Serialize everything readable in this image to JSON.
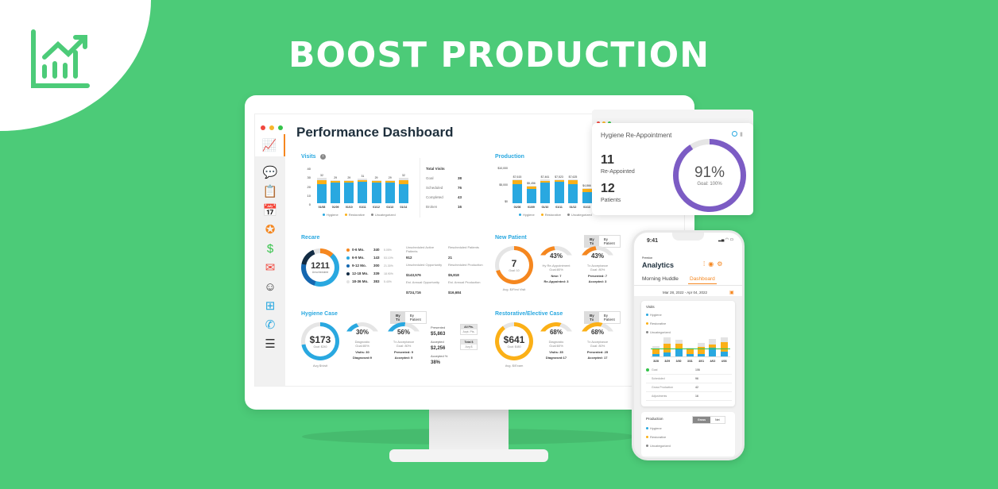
{
  "headline": "BOOST PRODUCTION",
  "colors": {
    "background": "#4ccb78",
    "hygiene": "#29a8e0",
    "restorative": "#fbb017",
    "uncategorized": "#e3e3e3",
    "accent_orange": "#f5871f",
    "purple": "#7c5cc4"
  },
  "logo_icon": "growth-chart-icon",
  "dashboard": {
    "title": "Performance Dashboard",
    "sidebar_icons": [
      "analytics-icon",
      "chat-icon",
      "patient-form-icon",
      "calendar-icon",
      "star-badge-icon",
      "money-icon",
      "mail-icon",
      "user-icon",
      "video-icon",
      "phone-icon",
      "clipboard-icon"
    ],
    "visits": {
      "title": "Visits",
      "yticks": [
        "40",
        "30",
        "20",
        "10",
        "0"
      ],
      "chart_data": {
        "type": "bar",
        "categories": [
          "01/08",
          "01/09",
          "01/10",
          "01/11",
          "01/12",
          "01/13",
          "01/14"
        ],
        "series": [
          {
            "name": "Hygiene",
            "values": [
              24,
              26,
              26,
              27,
              26,
              26,
              24
            ]
          },
          {
            "name": "Restorative",
            "values": [
              5,
              2,
              2,
              2,
              2,
              2,
              5
            ]
          },
          {
            "name": "Uncategorized",
            "values": [
              3,
              1,
              1,
              2,
              1,
              1,
              3
            ]
          }
        ],
        "totals": [
          32,
          29,
          29,
          31,
          29,
          29,
          32
        ],
        "ylim": [
          0,
          40
        ]
      },
      "legend": [
        "Hygiene",
        "Restorative",
        "Uncategorized"
      ],
      "total_visits": {
        "title": "Total Visits",
        "rows": [
          {
            "label": "Goal",
            "value": "38"
          },
          {
            "label": "Scheduled",
            "value": "76"
          },
          {
            "label": "Completed",
            "value": "43"
          },
          {
            "label": "Broken",
            "value": "16"
          }
        ]
      }
    },
    "production": {
      "title": "Production",
      "yticks": [
        "$10,000",
        "$5,000",
        "$0"
      ],
      "chart_data": {
        "type": "bar",
        "categories": [
          "01/08",
          "01/09",
          "01/10",
          "01/11",
          "01/12",
          "01/13"
        ],
        "series": [
          {
            "name": "Hygiene",
            "values": [
              6000,
              4600,
              6500,
              6800,
              6000,
              3600
            ]
          },
          {
            "name": "Restorative",
            "values": [
              1200,
              700,
              500,
              400,
              1200,
              800
            ]
          },
          {
            "name": "Uncategorized",
            "values": [
              415,
              156,
              461,
              323,
              425,
              466
            ]
          }
        ],
        "labels": [
          "$7,615",
          "$5,456",
          "$7,461",
          "$7,523",
          "$7,625",
          "$4,866"
        ],
        "ylim": [
          0,
          10000
        ]
      },
      "legend": [
        "Hygiene",
        "Restorative",
        "Uncategorized"
      ]
    },
    "recare": {
      "title": "Recare",
      "center_value": "1211",
      "center_label": "Unscheduled",
      "rows": [
        {
          "label": "0-6 Mo.",
          "value": "340",
          "pct": "5.05%",
          "color": "#f5871f"
        },
        {
          "label": "6-9 Mo.",
          "value": "143",
          "pct": "53.10%",
          "color": "#29a8e0"
        },
        {
          "label": "9-12 Mo.",
          "value": "300",
          "pct": "21.30%",
          "color": "#1567b0"
        },
        {
          "label": "12-18 Mo.",
          "value": "339",
          "pct": "18.90%",
          "color": "#132c44"
        },
        {
          "label": "18-36 Mo.",
          "value": "383",
          "pct": "5.40%",
          "color": "#e3e3e3"
        }
      ],
      "stats": [
        {
          "label": "Unscheduled Active Patients",
          "value": "912"
        },
        {
          "label": "Rescheduled Patients",
          "value": "21"
        },
        {
          "label": "Unscheduled Opportunity",
          "value": "$143,576"
        },
        {
          "label": "Rescheduled Production",
          "value": "$5,818"
        },
        {
          "label": "Est. Annual Opportunity",
          "value": "$724,716"
        },
        {
          "label": "Est. Annual Production",
          "value": "$16,684"
        }
      ]
    },
    "new_patient": {
      "title": "New Patient",
      "toggle": [
        "By Tx",
        "By Patient"
      ],
      "main": {
        "value": "7",
        "goal": "Goal: 10",
        "caption": "Avg. $/First Visit",
        "pct": 0.7
      },
      "g1": {
        "value": "43%",
        "label": "Hy Re-Appointment",
        "goal": "Goal:80%",
        "l1": "New: 7",
        "l2": "Re-Appointed: 3",
        "pct": 0.43
      },
      "g2": {
        "value": "43%",
        "label": "Tx Acceptance",
        "goal": "Goal: 80%",
        "l1": "Presented: 7",
        "l2": "Accepted: 3",
        "pct": 0.43
      }
    },
    "hygiene_case": {
      "title": "Hygiene Case",
      "toggle": [
        "By Tx",
        "By Patient"
      ],
      "main": {
        "value": "$173",
        "goal": "Goal: $240",
        "caption": "Avg $/visit",
        "pct": 0.72
      },
      "g1": {
        "value": "30%",
        "label": "Diagnostic",
        "goal": "Goal:80%",
        "l1": "Visits: 30",
        "l2": "Diagnosed:9",
        "pct": 0.3
      },
      "g2": {
        "value": "56%",
        "label": "Tx Acceptance",
        "goal": "Goal: 80%",
        "l1": "Presented: 9",
        "l2": "Accepted: 5",
        "pct": 0.56
      },
      "stats": [
        {
          "label": "Presented",
          "value": "$5,863"
        },
        {
          "label": "Accepted",
          "value": "$2,256"
        },
        {
          "label": "Accepted %",
          "value": "38%"
        }
      ],
      "side_buttons": [
        {
          "top": "All Pts.",
          "bottom": "Acpt. Pts."
        },
        {
          "top": "Total $",
          "bottom": "Avg $"
        }
      ]
    },
    "restorative_case": {
      "title": "Restorative/Elective Case",
      "toggle": [
        "By Tx",
        "By Patient"
      ],
      "main": {
        "value": "$641",
        "goal": "Goal: $480",
        "caption": "Avg. $/Exam",
        "pct": 0.9
      },
      "g1": {
        "value": "68%",
        "label": "Diagnostic",
        "goal": "Goal:60%",
        "l1": "Visits: 35",
        "l2": "Diagnosed:17",
        "pct": 0.68
      },
      "g2": {
        "value": "68%",
        "label": "Tx Acceptance",
        "goal": "Goal: 80%",
        "l1": "Presented: 25",
        "l2": "Accepted: 17",
        "pct": 0.68
      }
    }
  },
  "popup": {
    "title": "Hygiene Re-Appointment",
    "reappointed_value": "11",
    "reappointed_label": "Re-Appointed",
    "patients_value": "12",
    "patients_label": "Patients",
    "percent": "91%",
    "goal": "Goal: 100%",
    "pct": 0.91
  },
  "phone": {
    "time": "9:41",
    "org": "Preedon",
    "title": "Analytics",
    "tabs": [
      "Morning Huddle",
      "Dashboard"
    ],
    "date_range": "Mar 28, 2022  -  Apr 04, 2022",
    "visits": {
      "title": "Visits",
      "legend": [
        "Hygiene",
        "Restorative",
        "Uncategorized"
      ],
      "chart_data": {
        "type": "bar",
        "categories": [
          "3/28",
          "3/29",
          "3/30",
          "3/31",
          "4/01",
          "4/02",
          "4/03"
        ],
        "series": [
          {
            "name": "Hygiene",
            "values": [
              4,
              6,
              10,
              3,
              4,
              13,
              7
            ]
          },
          {
            "name": "Restorative",
            "values": [
              8,
              13,
              9,
              8,
              10,
              4,
              14
            ]
          },
          {
            "name": "Uncategorized",
            "values": [
              3,
              9,
              5,
              2,
              6,
              8,
              7
            ]
          }
        ],
        "ylim": [
          0,
          30
        ]
      },
      "rows": [
        {
          "label": "Goal",
          "value": "106"
        },
        {
          "label": "Scheduled",
          "value": "96"
        },
        {
          "label": "Gross Production",
          "value": "42"
        },
        {
          "label": "Adjustments",
          "value": "16"
        }
      ]
    },
    "production": {
      "title": "Production",
      "toggle": [
        "Gross",
        "Net"
      ],
      "legend": [
        "Hygiene",
        "Restorative",
        "Uncategorized"
      ]
    }
  }
}
